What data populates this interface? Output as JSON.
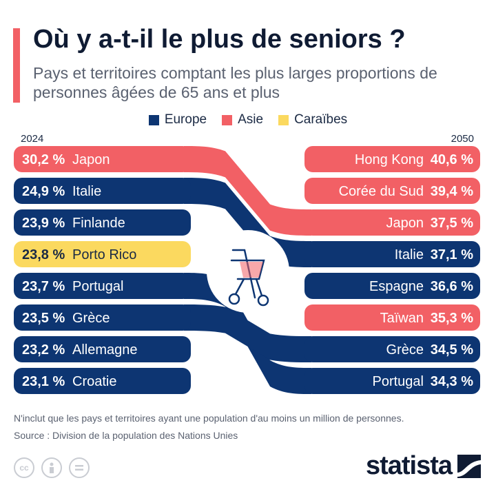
{
  "header": {
    "title": "Où y a-t-il le plus de seniors ?",
    "subtitle": "Pays et territoires comptant les plus larges proportions de personnes âgées de 65 ans et plus"
  },
  "colors": {
    "Europe": "#0d3572",
    "Asie": "#f26065",
    "Caraïbes": "#fbd95f",
    "accent": "#f26065"
  },
  "legend": [
    "Europe",
    "Asie",
    "Caraïbes"
  ],
  "chart_data": {
    "type": "slope",
    "unit": "%",
    "left_year": "2024",
    "right_year": "2050",
    "left": [
      {
        "country": "Japon",
        "value": 30.2,
        "label": "30,2 %",
        "region": "Asie"
      },
      {
        "country": "Italie",
        "value": 24.9,
        "label": "24,9 %",
        "region": "Europe"
      },
      {
        "country": "Finlande",
        "value": 23.9,
        "label": "23,9 %",
        "region": "Europe"
      },
      {
        "country": "Porto Rico",
        "value": 23.8,
        "label": "23,8 %",
        "region": "Caraïbes"
      },
      {
        "country": "Portugal",
        "value": 23.7,
        "label": "23,7 %",
        "region": "Europe"
      },
      {
        "country": "Grèce",
        "value": 23.5,
        "label": "23,5 %",
        "region": "Europe"
      },
      {
        "country": "Allemagne",
        "value": 23.2,
        "label": "23,2 %",
        "region": "Europe"
      },
      {
        "country": "Croatie",
        "value": 23.1,
        "label": "23,1 %",
        "region": "Europe"
      }
    ],
    "right": [
      {
        "country": "Hong Kong",
        "value": 40.6,
        "label": "40,6 %",
        "region": "Asie"
      },
      {
        "country": "Corée du Sud",
        "value": 39.4,
        "label": "39,4 %",
        "region": "Asie"
      },
      {
        "country": "Japon",
        "value": 37.5,
        "label": "37,5 %",
        "region": "Asie"
      },
      {
        "country": "Italie",
        "value": 37.1,
        "label": "37,1 %",
        "region": "Europe"
      },
      {
        "country": "Espagne",
        "value": 36.6,
        "label": "36,6 %",
        "region": "Europe"
      },
      {
        "country": "Taïwan",
        "value": 35.3,
        "label": "35,3 %",
        "region": "Asie"
      },
      {
        "country": "Grèce",
        "value": 34.5,
        "label": "34,5 %",
        "region": "Europe"
      },
      {
        "country": "Portugal",
        "value": 34.3,
        "label": "34,3 %",
        "region": "Europe"
      }
    ]
  },
  "footer": {
    "note": "N'inclut que les pays et territoires ayant une population d'au moins un million de personnes.",
    "source": "Source : Division de la population des Nations Unies",
    "license_icons": [
      "cc-icon",
      "attribution-icon",
      "no-derivatives-icon"
    ],
    "logo": "statista"
  }
}
